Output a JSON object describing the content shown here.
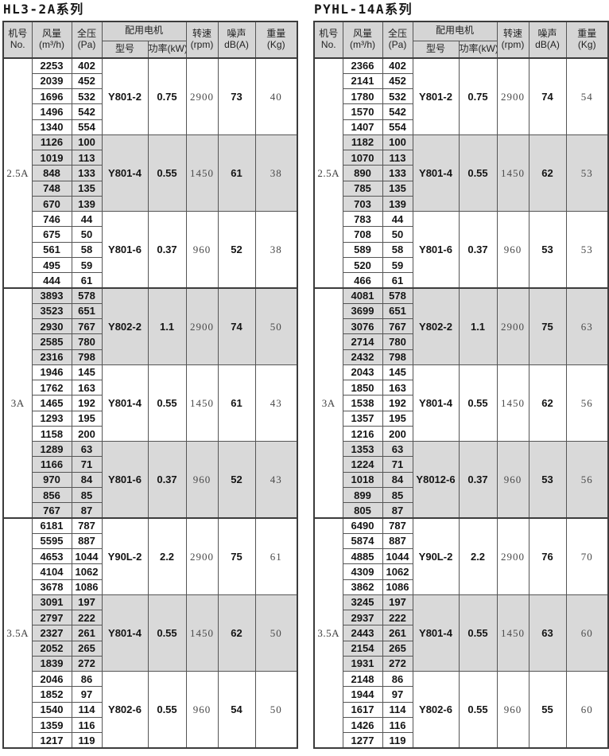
{
  "colors": {
    "page_bg": "#ffffff",
    "header_bg": "#d5d5d5",
    "shaded_group_bg": "#d9d9d9",
    "border": "#3c3c3c",
    "bold_text": "#141414",
    "light_text": "#4a4a4a"
  },
  "header": {
    "model_no": [
      "机号",
      "No."
    ],
    "airflow": [
      "风量",
      "(m³/h)"
    ],
    "pressure": [
      "全压",
      "(Pa)"
    ],
    "motor_group": "配用电机",
    "motor_model": "型号",
    "motor_power": "功率(kW)",
    "rpm": [
      "转速",
      "(rpm)"
    ],
    "noise": [
      "噪声",
      "dB(A)"
    ],
    "weight": [
      "重量",
      "(Kg)"
    ]
  },
  "tables": [
    {
      "title": "HL3-2A系列",
      "sections": [
        {
          "model": "2.5A",
          "groups": [
            {
              "shaded": false,
              "rows": [
                [
                  2253,
                  402
                ],
                [
                  2039,
                  452
                ],
                [
                  1696,
                  532
                ],
                [
                  1496,
                  542
                ],
                [
                  1340,
                  554
                ]
              ],
              "motor": "Y801-2",
              "power": "0.75",
              "rpm": "2900",
              "noise": "73",
              "weight": "40"
            },
            {
              "shaded": true,
              "rows": [
                [
                  1126,
                  100
                ],
                [
                  1019,
                  113
                ],
                [
                  848,
                  133
                ],
                [
                  748,
                  135
                ],
                [
                  670,
                  139
                ]
              ],
              "motor": "Y801-4",
              "power": "0.55",
              "rpm": "1450",
              "noise": "61",
              "weight": "38"
            },
            {
              "shaded": false,
              "rows": [
                [
                  746,
                  44
                ],
                [
                  675,
                  50
                ],
                [
                  561,
                  58
                ],
                [
                  495,
                  59
                ],
                [
                  444,
                  61
                ]
              ],
              "motor": "Y801-6",
              "power": "0.37",
              "rpm": "960",
              "noise": "52",
              "weight": "38"
            }
          ]
        },
        {
          "model": "3A",
          "groups": [
            {
              "shaded": true,
              "rows": [
                [
                  3893,
                  578
                ],
                [
                  3523,
                  651
                ],
                [
                  2930,
                  767
                ],
                [
                  2585,
                  780
                ],
                [
                  2316,
                  798
                ]
              ],
              "motor": "Y802-2",
              "power": "1.1",
              "rpm": "2900",
              "noise": "74",
              "weight": "50"
            },
            {
              "shaded": false,
              "rows": [
                [
                  1946,
                  145
                ],
                [
                  1762,
                  163
                ],
                [
                  1465,
                  192
                ],
                [
                  1293,
                  195
                ],
                [
                  1158,
                  200
                ]
              ],
              "motor": "Y801-4",
              "power": "0.55",
              "rpm": "1450",
              "noise": "61",
              "weight": "43"
            },
            {
              "shaded": true,
              "rows": [
                [
                  1289,
                  63
                ],
                [
                  1166,
                  71
                ],
                [
                  970,
                  84
                ],
                [
                  856,
                  85
                ],
                [
                  767,
                  87
                ]
              ],
              "motor": "Y801-6",
              "power": "0.37",
              "rpm": "960",
              "noise": "52",
              "weight": "43"
            }
          ]
        },
        {
          "model": "3.5A",
          "groups": [
            {
              "shaded": false,
              "rows": [
                [
                  6181,
                  787
                ],
                [
                  5595,
                  887
                ],
                [
                  4653,
                  1044
                ],
                [
                  4104,
                  1062
                ],
                [
                  3678,
                  1086
                ]
              ],
              "motor": "Y90L-2",
              "power": "2.2",
              "rpm": "2900",
              "noise": "75",
              "weight": "61"
            },
            {
              "shaded": true,
              "rows": [
                [
                  3091,
                  197
                ],
                [
                  2797,
                  222
                ],
                [
                  2327,
                  261
                ],
                [
                  2052,
                  265
                ],
                [
                  1839,
                  272
                ]
              ],
              "motor": "Y801-4",
              "power": "0.55",
              "rpm": "1450",
              "noise": "62",
              "weight": "50"
            },
            {
              "shaded": false,
              "rows": [
                [
                  2046,
                  86
                ],
                [
                  1852,
                  97
                ],
                [
                  1540,
                  114
                ],
                [
                  1359,
                  116
                ],
                [
                  1217,
                  119
                ]
              ],
              "motor": "Y802-6",
              "power": "0.55",
              "rpm": "960",
              "noise": "54",
              "weight": "50"
            }
          ]
        }
      ]
    },
    {
      "title": "PYHL-14A系列",
      "sections": [
        {
          "model": "2.5A",
          "groups": [
            {
              "shaded": false,
              "rows": [
                [
                  2366,
                  402
                ],
                [
                  2141,
                  452
                ],
                [
                  1780,
                  532
                ],
                [
                  1570,
                  542
                ],
                [
                  1407,
                  554
                ]
              ],
              "motor": "Y801-2",
              "power": "0.75",
              "rpm": "2900",
              "noise": "74",
              "weight": "54"
            },
            {
              "shaded": true,
              "rows": [
                [
                  1182,
                  100
                ],
                [
                  1070,
                  113
                ],
                [
                  890,
                  133
                ],
                [
                  785,
                  135
                ],
                [
                  703,
                  139
                ]
              ],
              "motor": "Y801-4",
              "power": "0.55",
              "rpm": "1450",
              "noise": "62",
              "weight": "53"
            },
            {
              "shaded": false,
              "rows": [
                [
                  783,
                  44
                ],
                [
                  708,
                  50
                ],
                [
                  589,
                  58
                ],
                [
                  520,
                  59
                ],
                [
                  466,
                  61
                ]
              ],
              "motor": "Y801-6",
              "power": "0.37",
              "rpm": "960",
              "noise": "53",
              "weight": "53"
            }
          ]
        },
        {
          "model": "3A",
          "groups": [
            {
              "shaded": true,
              "rows": [
                [
                  4081,
                  578
                ],
                [
                  3699,
                  651
                ],
                [
                  3076,
                  767
                ],
                [
                  2714,
                  780
                ],
                [
                  2432,
                  798
                ]
              ],
              "motor": "Y802-2",
              "power": "1.1",
              "rpm": "2900",
              "noise": "75",
              "weight": "63"
            },
            {
              "shaded": false,
              "rows": [
                [
                  2043,
                  145
                ],
                [
                  1850,
                  163
                ],
                [
                  1538,
                  192
                ],
                [
                  1357,
                  195
                ],
                [
                  1216,
                  200
                ]
              ],
              "motor": "Y801-4",
              "power": "0.55",
              "rpm": "1450",
              "noise": "62",
              "weight": "56"
            },
            {
              "shaded": true,
              "rows": [
                [
                  1353,
                  63
                ],
                [
                  1224,
                  71
                ],
                [
                  1018,
                  84
                ],
                [
                  899,
                  85
                ],
                [
                  805,
                  87
                ]
              ],
              "motor": "Y8012-6",
              "power": "0.37",
              "rpm": "960",
              "noise": "53",
              "weight": "56"
            }
          ]
        },
        {
          "model": "3.5A",
          "groups": [
            {
              "shaded": false,
              "rows": [
                [
                  6490,
                  787
                ],
                [
                  5874,
                  887
                ],
                [
                  4885,
                  1044
                ],
                [
                  4309,
                  1062
                ],
                [
                  3862,
                  1086
                ]
              ],
              "motor": "Y90L-2",
              "power": "2.2",
              "rpm": "2900",
              "noise": "76",
              "weight": "70"
            },
            {
              "shaded": true,
              "rows": [
                [
                  3245,
                  197
                ],
                [
                  2937,
                  222
                ],
                [
                  2443,
                  261
                ],
                [
                  2154,
                  265
                ],
                [
                  1931,
                  272
                ]
              ],
              "motor": "Y801-4",
              "power": "0.55",
              "rpm": "1450",
              "noise": "63",
              "weight": "60"
            },
            {
              "shaded": false,
              "rows": [
                [
                  2148,
                  86
                ],
                [
                  1944,
                  97
                ],
                [
                  1617,
                  114
                ],
                [
                  1426,
                  116
                ],
                [
                  1277,
                  119
                ]
              ],
              "motor": "Y802-6",
              "power": "0.55",
              "rpm": "960",
              "noise": "55",
              "weight": "60"
            }
          ]
        }
      ]
    }
  ]
}
